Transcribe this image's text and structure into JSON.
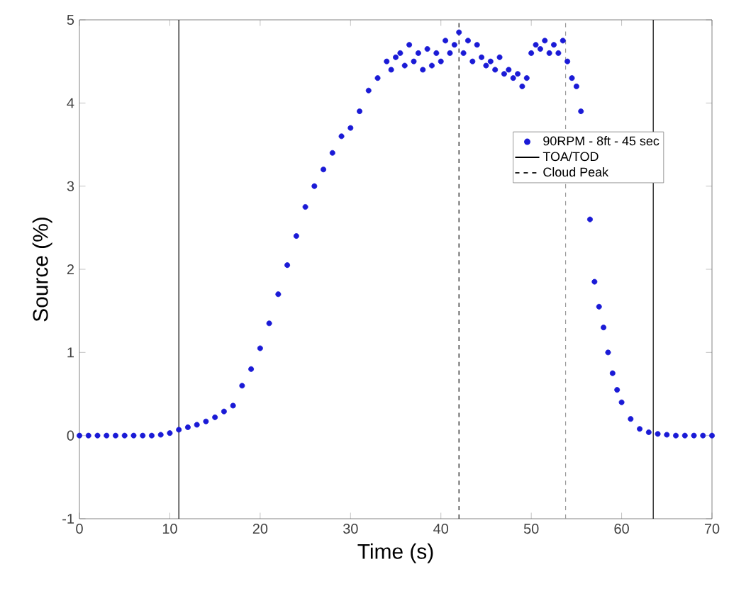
{
  "chart_data": {
    "type": "scatter",
    "xlabel": "Time (s)",
    "ylabel": "Source (%)",
    "xlim": [
      0,
      70
    ],
    "ylim": [
      -1,
      5
    ],
    "xticks": [
      0,
      10,
      20,
      30,
      40,
      50,
      60,
      70
    ],
    "yticks": [
      -1,
      0,
      1,
      2,
      3,
      4,
      5
    ],
    "grid": false,
    "legend": "right",
    "marker": "circle",
    "series": [
      {
        "name": "90RPM - 8ft - 45 sec",
        "color": "#1a1ad6",
        "x": [
          0,
          1,
          2,
          3,
          4,
          5,
          6,
          7,
          8,
          9,
          10,
          11,
          12,
          13,
          14,
          15,
          16,
          17,
          18,
          19,
          20,
          21,
          22,
          23,
          24,
          25,
          26,
          27,
          28,
          29,
          30,
          31,
          32,
          33,
          34,
          34.5,
          35,
          35.5,
          36,
          36.5,
          37,
          37.5,
          38,
          38.5,
          39,
          39.5,
          40,
          40.5,
          41,
          41.5,
          42,
          42.5,
          43,
          43.5,
          44,
          44.5,
          45,
          45.5,
          46,
          46.5,
          47,
          47.5,
          48,
          48.5,
          49,
          49.5,
          50,
          50.5,
          51,
          51.5,
          52,
          52.5,
          53,
          53.5,
          54,
          54.5,
          55,
          55.5,
          56.5,
          57,
          57.5,
          58,
          58.5,
          59,
          59.5,
          60,
          61,
          62,
          63,
          64,
          65,
          66,
          67,
          68,
          69,
          70
        ],
        "values": [
          0,
          0,
          0,
          0,
          0,
          0,
          0,
          0,
          0,
          0.01,
          0.03,
          0.07,
          0.1,
          0.13,
          0.17,
          0.22,
          0.29,
          0.36,
          0.6,
          0.8,
          1.05,
          1.35,
          1.7,
          2.05,
          2.4,
          2.75,
          3.0,
          3.2,
          3.4,
          3.6,
          3.7,
          3.9,
          4.15,
          4.3,
          4.5,
          4.4,
          4.55,
          4.6,
          4.45,
          4.7,
          4.5,
          4.6,
          4.4,
          4.65,
          4.45,
          4.6,
          4.5,
          4.75,
          4.6,
          4.7,
          4.85,
          4.6,
          4.75,
          4.5,
          4.7,
          4.55,
          4.45,
          4.5,
          4.4,
          4.55,
          4.35,
          4.4,
          4.3,
          4.35,
          4.2,
          4.3,
          4.6,
          4.7,
          4.65,
          4.75,
          4.6,
          4.7,
          4.6,
          4.75,
          4.5,
          4.3,
          4.2,
          3.9,
          2.6,
          1.85,
          1.55,
          1.3,
          1.0,
          0.75,
          0.55,
          0.4,
          0.2,
          0.08,
          0.04,
          0.02,
          0.01,
          0,
          0,
          0,
          0,
          0
        ]
      }
    ],
    "ref_lines": [
      {
        "axis": "x",
        "value": 11,
        "label": "TOA/TOD",
        "color": "#000000",
        "line_style": "solid"
      },
      {
        "axis": "x",
        "value": 63.5,
        "color": "#000000",
        "line_style": "solid"
      },
      {
        "axis": "x",
        "value": 42,
        "label": "Cloud Peak",
        "color": "#111111",
        "line_style": "dashed"
      },
      {
        "axis": "x",
        "value": 53.8,
        "color": "#999999",
        "line_style": "dashed"
      }
    ]
  }
}
